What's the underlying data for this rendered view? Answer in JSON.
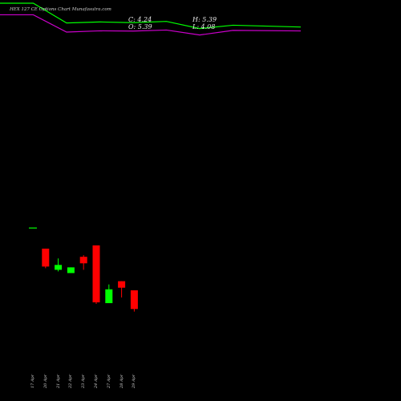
{
  "header": {
    "title": "HEX 127 CE Options Chart Munafasutra.com",
    "close_label": "C: 4.24",
    "open_label": "O: 5.39",
    "high_label": "H: 5.39",
    "low_label": "L: 4.08"
  },
  "colors": {
    "background": "#000000",
    "upper_line": "#00ff00",
    "lower_line": "#cc00cc",
    "up_candle": "#00ff00",
    "down_candle": "#ff0000"
  },
  "chart_data": {
    "type": "candlestick",
    "title": "HEX 127 CE Options Chart Munafasutra.com",
    "categories": [
      "17 Apr",
      "20 Apr",
      "21 Apr",
      "22 Apr",
      "23 Apr",
      "24 Apr",
      "27 Apr",
      "28 Apr",
      "29 Apr"
    ],
    "candles": [
      {
        "date": "17 Apr",
        "open": 9.25,
        "high": 9.25,
        "low": 9.25,
        "close": 9.25
      },
      {
        "date": "20 Apr",
        "open": 7.95,
        "high": 7.95,
        "low": 6.75,
        "close": 6.85
      },
      {
        "date": "21 Apr",
        "open": 6.65,
        "high": 7.35,
        "low": 6.55,
        "close": 6.95
      },
      {
        "date": "22 Apr",
        "open": 6.45,
        "high": 6.8,
        "low": 6.45,
        "close": 6.8
      },
      {
        "date": "23 Apr",
        "open": 7.45,
        "high": 7.55,
        "low": 6.65,
        "close": 7.05
      },
      {
        "date": "24 Apr",
        "open": 8.15,
        "high": 8.15,
        "low": 4.55,
        "close": 4.65
      },
      {
        "date": "27 Apr",
        "open": 4.6,
        "high": 5.75,
        "low": 4.6,
        "close": 5.45
      },
      {
        "date": "28 Apr",
        "open": 5.95,
        "high": 5.95,
        "low": 4.95,
        "close": 5.55
      },
      {
        "date": "29 Apr",
        "open": 5.39,
        "high": 5.39,
        "low": 4.08,
        "close": 4.24
      }
    ],
    "upper_line": [
      81.0,
      81.0,
      63.4,
      64.3,
      63.7,
      64.8,
      58.4,
      61.4,
      59.8
    ],
    "lower_line": [
      70.7,
      70.7,
      55.3,
      56.4,
      56.2,
      57.1,
      52.7,
      56.8,
      56.3
    ]
  }
}
